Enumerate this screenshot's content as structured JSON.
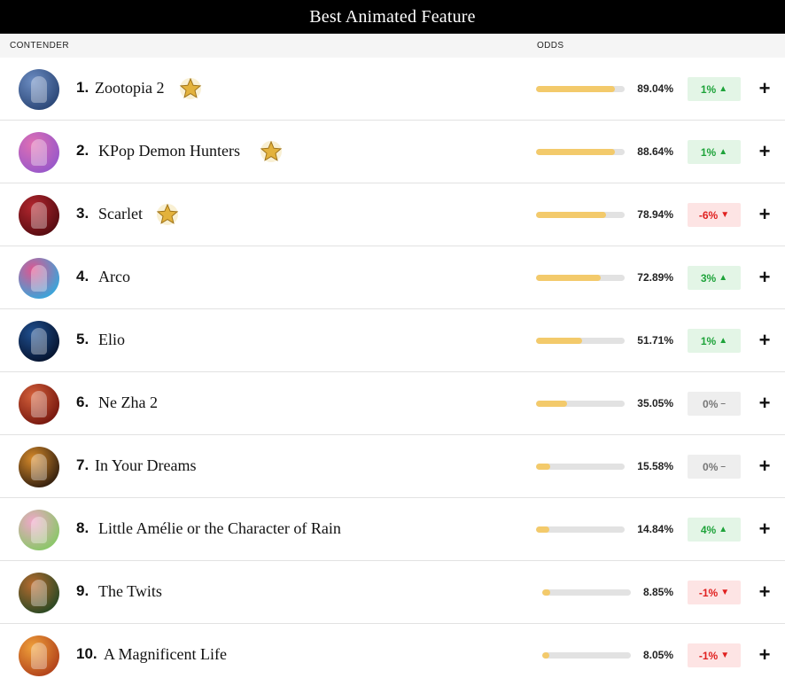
{
  "title": "Best Animated Feature",
  "columns": {
    "contender": "CONTENDER",
    "odds": "ODDS"
  },
  "colors": {
    "bar_fill": "#f3ca6b",
    "bar_track": "#e2e2e2",
    "up_bg": "#e3f5e6",
    "up_text": "#1ea33a",
    "down_bg": "#fde4e4",
    "down_text": "#e0201f",
    "flat_bg": "#eeeeee",
    "flat_text": "#777777"
  },
  "rows": [
    {
      "rank": "1.",
      "title": "Zootopia 2",
      "starred": true,
      "odds": "89.04%",
      "odds_value": 89.04,
      "change": "1%",
      "direction": "up",
      "arrow": "▲",
      "poster_colors": [
        "#2e4a7a",
        "#6b8cc2"
      ]
    },
    {
      "rank": "2.",
      "title": "KPop Demon Hunters",
      "starred": true,
      "odds": "88.64%",
      "odds_value": 88.64,
      "change": "1%",
      "direction": "up",
      "arrow": "▲",
      "poster_colors": [
        "#9b59c9",
        "#e06fb3"
      ]
    },
    {
      "rank": "3.",
      "title": "Scarlet",
      "starred": true,
      "odds": "78.94%",
      "odds_value": 78.94,
      "change": "-6%",
      "direction": "down",
      "arrow": "▼",
      "poster_colors": [
        "#5a0d12",
        "#b3262e"
      ]
    },
    {
      "rank": "4.",
      "title": "Arco",
      "starred": false,
      "odds": "72.89%",
      "odds_value": 72.89,
      "change": "3%",
      "direction": "up",
      "arrow": "▲",
      "poster_colors": [
        "#3ea3d8",
        "#e0558f"
      ]
    },
    {
      "rank": "5.",
      "title": "Elio",
      "starred": false,
      "odds": "51.71%",
      "odds_value": 51.71,
      "change": "1%",
      "direction": "up",
      "arrow": "▲",
      "poster_colors": [
        "#071633",
        "#1f4f8f"
      ]
    },
    {
      "rank": "6.",
      "title": "Ne Zha 2",
      "starred": false,
      "odds": "35.05%",
      "odds_value": 35.05,
      "change": "0%",
      "direction": "flat",
      "arrow": "–",
      "poster_colors": [
        "#7a1a10",
        "#d4603a"
      ]
    },
    {
      "rank": "7.",
      "title": "In Your Dreams",
      "starred": false,
      "odds": "15.58%",
      "odds_value": 15.58,
      "change": "0%",
      "direction": "flat",
      "arrow": "–",
      "poster_colors": [
        "#3a2410",
        "#d78a2a"
      ]
    },
    {
      "rank": "8.",
      "title": "Little Amélie or the Character of Rain",
      "starred": false,
      "odds": "14.84%",
      "odds_value": 14.84,
      "change": "4%",
      "direction": "up",
      "arrow": "▲",
      "poster_colors": [
        "#8dc66b",
        "#f0a7c9"
      ]
    },
    {
      "rank": "9.",
      "title": "The Twits",
      "starred": false,
      "odds": "8.85%",
      "odds_value": 8.85,
      "change": "-1%",
      "direction": "down",
      "arrow": "▼",
      "poster_colors": [
        "#2f4a24",
        "#b86b2f"
      ]
    },
    {
      "rank": "10.",
      "title": "A Magnificent Life",
      "starred": false,
      "odds": "8.05%",
      "odds_value": 8.05,
      "change": "-1%",
      "direction": "down",
      "arrow": "▼",
      "poster_colors": [
        "#b4461c",
        "#f0a13a"
      ]
    }
  ]
}
